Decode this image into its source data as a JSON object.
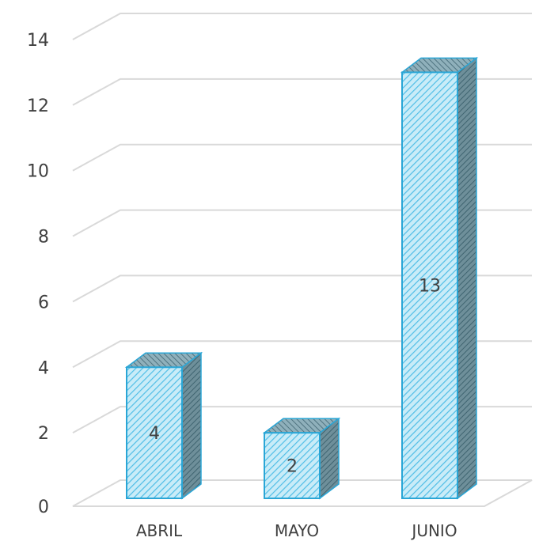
{
  "chart_data": {
    "type": "bar",
    "style": "3d-column",
    "categories": [
      "ABRIL",
      "MAYO",
      "JUNIO"
    ],
    "values": [
      4,
      2,
      13
    ],
    "data_labels": [
      "4",
      "2",
      "13"
    ],
    "yticks": [
      "0",
      "2",
      "4",
      "6",
      "8",
      "10",
      "12",
      "14"
    ],
    "ylim": [
      0,
      14
    ],
    "title": "",
    "xlabel": "",
    "ylabel": "",
    "grid": true,
    "legend": "none",
    "colors": {
      "bar_front": "#bfe8f7",
      "bar_stripe": "#4fbde6",
      "bar_edge": "#2aa6d6",
      "bar_side": "#5a7f8c",
      "bar_top": "#6f98a6",
      "grid": "#d9d9d9",
      "text": "#404040"
    }
  }
}
